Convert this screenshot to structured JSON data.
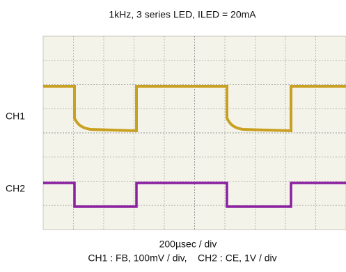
{
  "header": {
    "title": "1kHz, 3 series LED, ILED = 20mA"
  },
  "channels": [
    {
      "label": "CH1"
    },
    {
      "label": "CH2"
    }
  ],
  "footer": {
    "timebase": "200µsec / div",
    "settings": "CH1 : FB, 100mV / div,    CH2 : CE, 1V / div"
  }
}
